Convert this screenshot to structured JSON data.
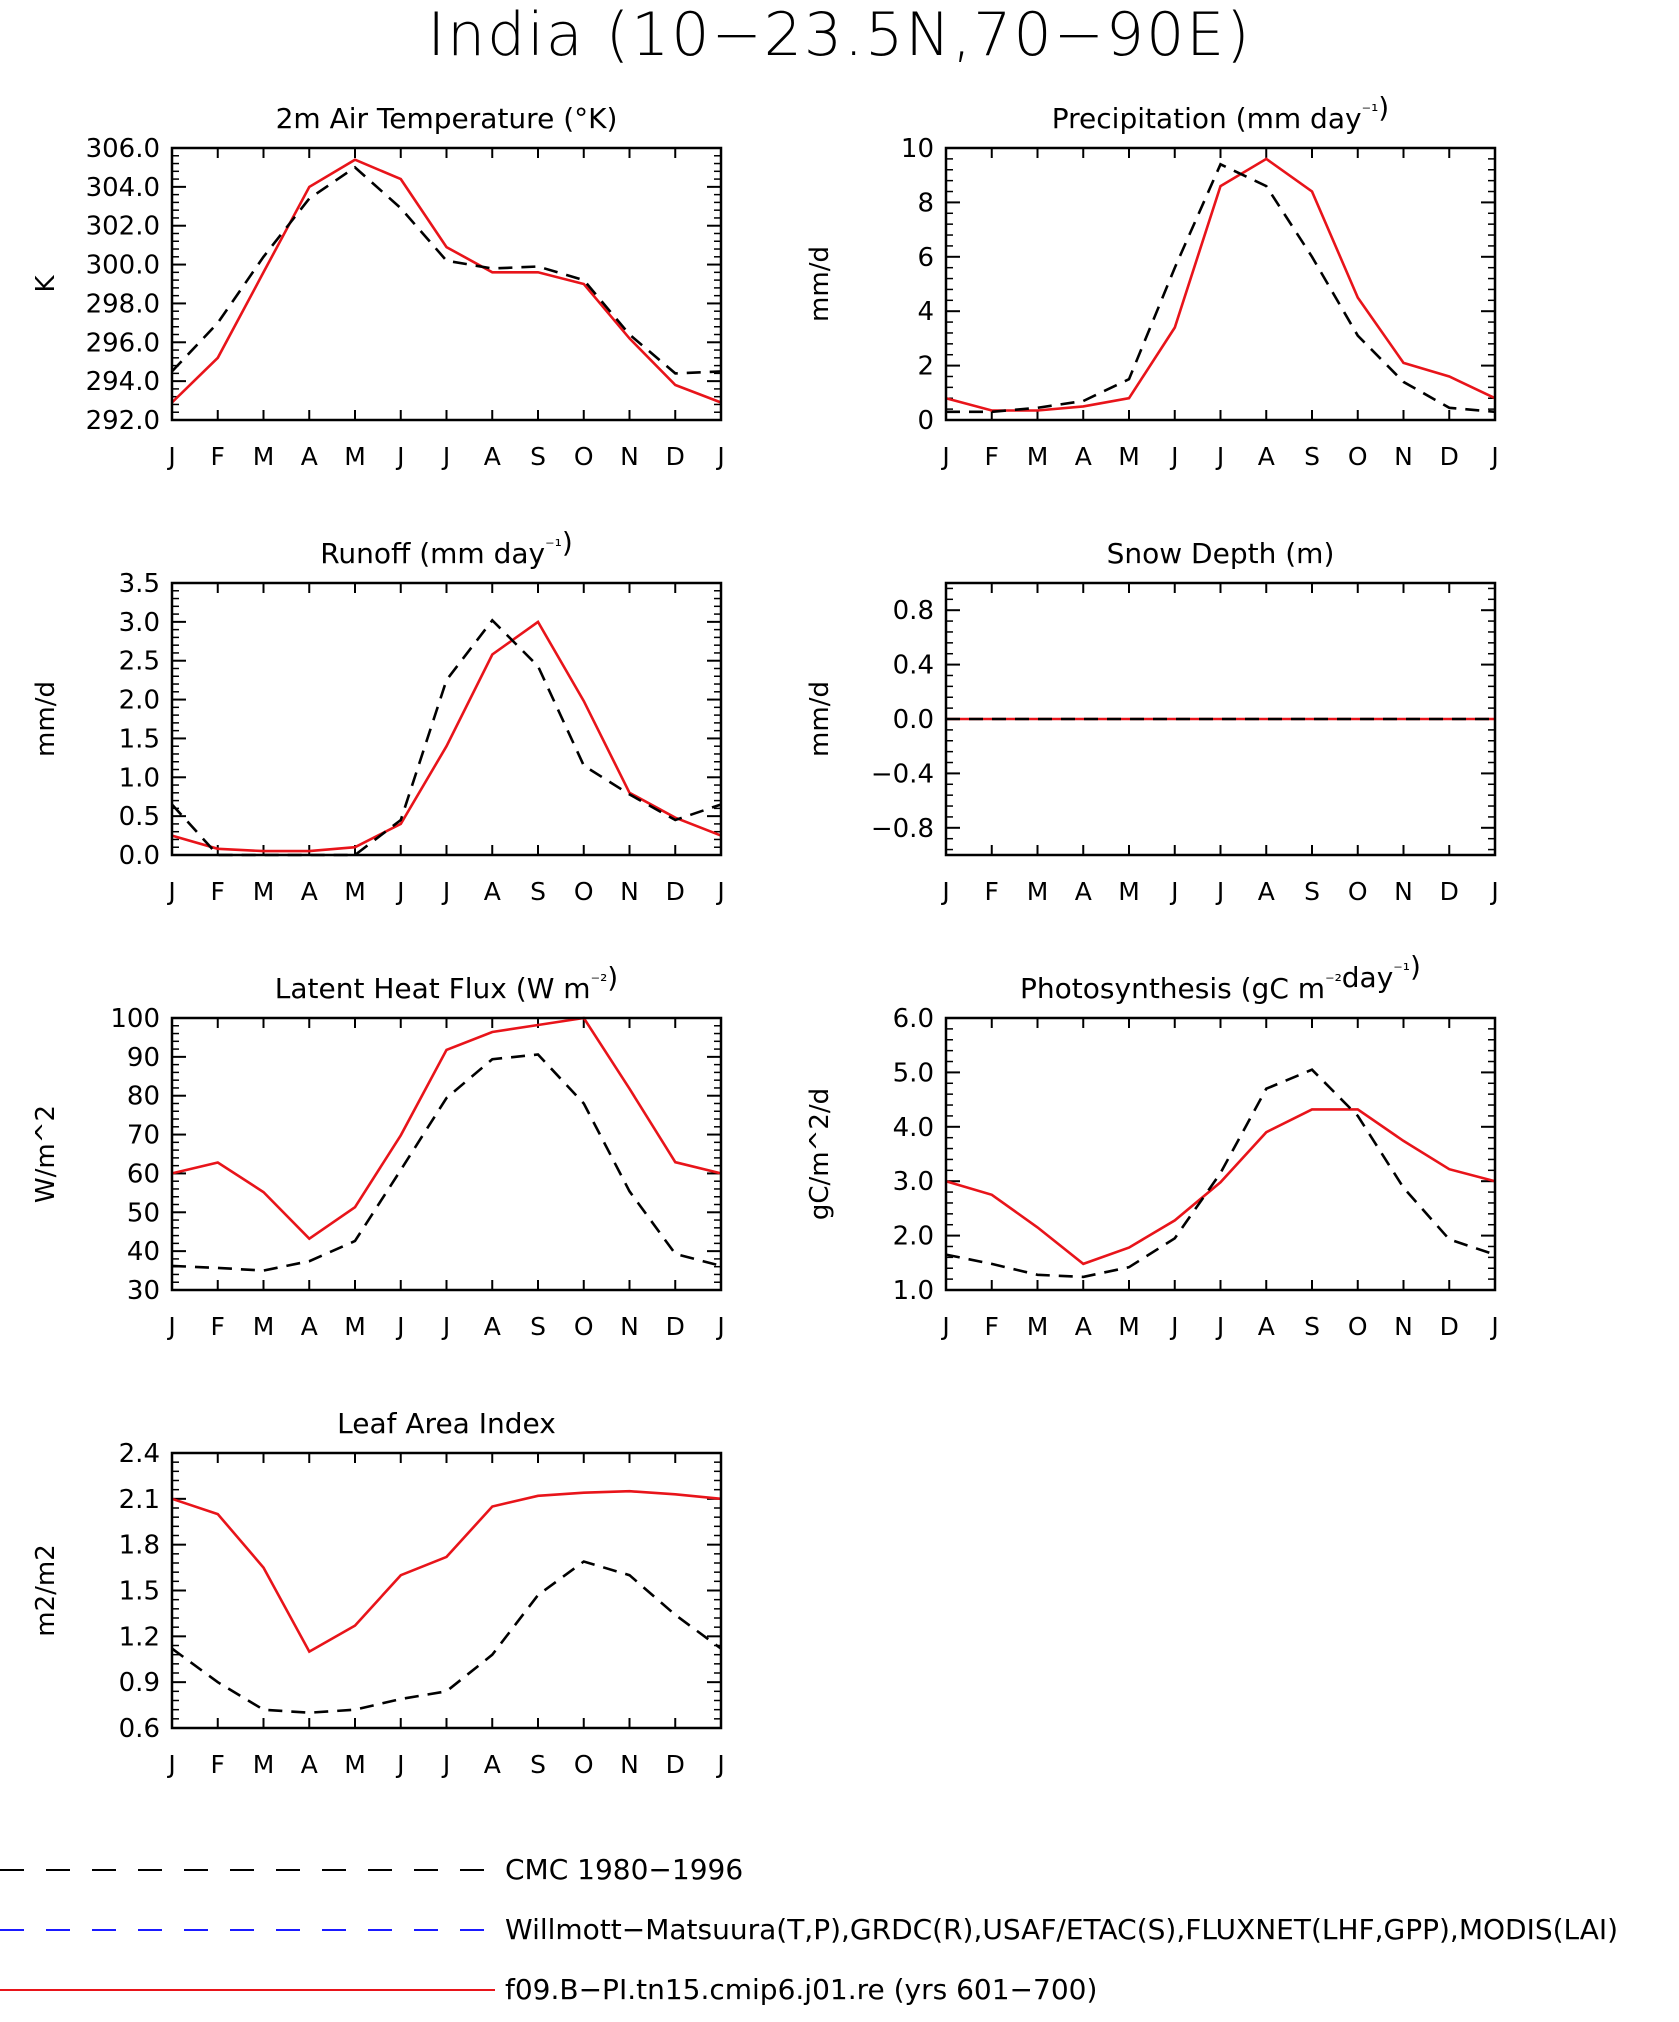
{
  "title": "India (10−23.5N,70−90E)",
  "colors": {
    "model": "#e8141a",
    "obs": "#000000",
    "obs2": "#1a1aff"
  },
  "month_labels": [
    "J",
    "F",
    "M",
    "A",
    "M",
    "J",
    "J",
    "A",
    "S",
    "O",
    "N",
    "D",
    "J"
  ],
  "chart_data": [
    {
      "type": "line",
      "title": "2m Air Temperature (°K)",
      "ylabel": "K",
      "ylim": [
        292,
        306
      ],
      "yticks": [
        292.0,
        294.0,
        296.0,
        298.0,
        300.0,
        302.0,
        304.0,
        306.0
      ],
      "ytick_labels": [
        "292.0",
        "294.0",
        "296.0",
        "298.0",
        "300.0",
        "302.0",
        "304.0",
        "306.0"
      ],
      "series": [
        {
          "values": [
            292.9,
            295.2,
            299.6,
            304.0,
            305.4,
            304.4,
            300.9,
            299.6,
            299.6,
            299.0,
            296.2,
            293.8,
            292.9
          ]
        },
        {
          "values": [
            294.5,
            297.0,
            300.4,
            303.4,
            305.0,
            302.9,
            300.2,
            299.8,
            299.9,
            299.2,
            296.4,
            294.4,
            294.5
          ]
        }
      ]
    },
    {
      "type": "line",
      "title": "Precipitation (mm day⁻¹)",
      "ylabel": "mm/d",
      "ylim": [
        0,
        10
      ],
      "yticks": [
        0,
        2,
        4,
        6,
        8,
        10
      ],
      "ytick_labels": [
        "0",
        "2",
        "4",
        "6",
        "8",
        "10"
      ],
      "series": [
        {
          "values": [
            0.8,
            0.35,
            0.35,
            0.5,
            0.8,
            3.4,
            8.6,
            9.6,
            8.4,
            4.5,
            2.1,
            1.6,
            0.8
          ]
        },
        {
          "values": [
            0.3,
            0.3,
            0.45,
            0.7,
            1.5,
            5.6,
            9.4,
            8.6,
            6.0,
            3.1,
            1.4,
            0.45,
            0.3
          ]
        }
      ]
    },
    {
      "type": "line",
      "title": "Runoff (mm day⁻¹)",
      "ylabel": "mm/d",
      "ylim": [
        0,
        3.5
      ],
      "yticks": [
        0,
        0.5,
        1.0,
        1.5,
        2.0,
        2.5,
        3.0,
        3.5
      ],
      "ytick_labels": [
        "0.0",
        "0.5",
        "1.0",
        "1.5",
        "2.0",
        "2.5",
        "3.0",
        "3.5"
      ],
      "series": [
        {
          "values": [
            0.25,
            0.08,
            0.05,
            0.05,
            0.1,
            0.4,
            1.4,
            2.58,
            3.0,
            1.98,
            0.8,
            0.48,
            0.25
          ]
        },
        {
          "values": [
            0.65,
            0.0,
            0.0,
            0.0,
            0.0,
            0.45,
            2.25,
            3.02,
            2.43,
            1.15,
            0.78,
            0.45,
            0.65
          ]
        }
      ]
    },
    {
      "type": "line",
      "title": "Snow Depth (m)",
      "ylabel": "mm/d",
      "ylim": [
        -1.0,
        1.0
      ],
      "yticks": [
        -0.8,
        -0.4,
        0.0,
        0.4,
        0.8
      ],
      "ytick_labels": [
        "−0.8",
        "−0.4",
        "0.0",
        "0.4",
        "0.8"
      ],
      "series": [
        {
          "values": [
            0,
            0,
            0,
            0,
            0,
            0,
            0,
            0,
            0,
            0,
            0,
            0,
            0
          ]
        },
        {
          "values": [
            0,
            0,
            0,
            0,
            0,
            0,
            0,
            0,
            0,
            0,
            0,
            0,
            0
          ]
        }
      ]
    },
    {
      "type": "line",
      "title": "Latent Heat Flux (W m⁻²)",
      "ylabel": "W/m^2",
      "ylim": [
        30,
        100
      ],
      "yticks": [
        30,
        40,
        50,
        60,
        70,
        80,
        90,
        100
      ],
      "ytick_labels": [
        "30",
        "40",
        "50",
        "60",
        "70",
        "80",
        "90",
        "100"
      ],
      "series": [
        {
          "values": [
            60.0,
            62.8,
            55.2,
            43.2,
            51.3,
            69.8,
            91.8,
            96.4,
            98.2,
            100.0,
            81.8,
            62.9,
            60.0
          ]
        },
        {
          "values": [
            36.2,
            35.7,
            35.0,
            37.4,
            42.6,
            60.9,
            79.4,
            89.4,
            90.6,
            78.0,
            55.4,
            39.3,
            36.2
          ]
        }
      ]
    },
    {
      "type": "line",
      "title": "Photosynthesis (gC m⁻²day⁻¹)",
      "ylabel": "gC/m^2/d",
      "ylim": [
        1.0,
        6.0
      ],
      "yticks": [
        1.0,
        2.0,
        3.0,
        4.0,
        5.0,
        6.0
      ],
      "ytick_labels": [
        "1.0",
        "2.0",
        "3.0",
        "4.0",
        "5.0",
        "6.0"
      ],
      "series": [
        {
          "values": [
            3.0,
            2.75,
            2.15,
            1.48,
            1.78,
            2.28,
            2.98,
            3.9,
            4.32,
            4.32,
            3.74,
            3.22,
            3.0
          ]
        },
        {
          "values": [
            1.65,
            1.48,
            1.28,
            1.24,
            1.42,
            1.95,
            3.15,
            4.7,
            5.05,
            4.2,
            2.88,
            1.93,
            1.65
          ]
        }
      ]
    },
    {
      "type": "line",
      "title": "Leaf Area Index",
      "ylabel": "m2/m2",
      "ylim": [
        0.6,
        2.4
      ],
      "yticks": [
        0.6,
        0.9,
        1.2,
        1.5,
        1.8,
        2.1,
        2.4
      ],
      "ytick_labels": [
        "0.6",
        "0.9",
        "1.2",
        "1.5",
        "1.8",
        "2.1",
        "2.4"
      ],
      "series": [
        {
          "values": [
            2.1,
            2.0,
            1.65,
            1.1,
            1.27,
            1.6,
            1.72,
            2.05,
            2.12,
            2.14,
            2.15,
            2.13,
            2.1
          ]
        },
        {
          "values": [
            1.12,
            0.9,
            0.72,
            0.7,
            0.72,
            0.79,
            0.84,
            1.08,
            1.47,
            1.69,
            1.6,
            1.34,
            1.12
          ]
        }
      ]
    }
  ],
  "legend": [
    {
      "text": "CMC 1980−1996",
      "style": "dashed",
      "color": "#000000"
    },
    {
      "text": "Willmott−Matsuura(T,P),GRDC(R),USAF/ETAC(S),FLUXNET(LHF,GPP),MODIS(LAI)",
      "style": "dashed",
      "color": "#1a1aff"
    },
    {
      "text": "f09.B−PI.tn15.cmip6.j01.re (yrs 601−700)",
      "style": "solid",
      "color": "#e8141a"
    }
  ]
}
